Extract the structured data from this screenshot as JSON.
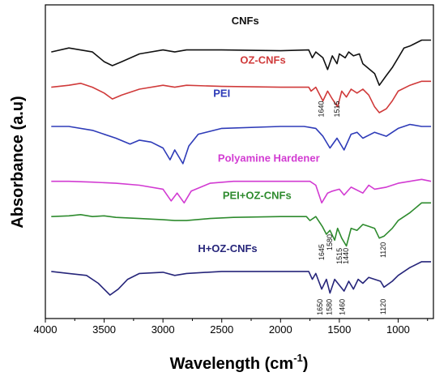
{
  "chart_data": {
    "type": "line",
    "title": "",
    "xlabel": "Wavelength (cm",
    "xlabel_sup": "-1",
    "xlabel_close": ")",
    "ylabel": "Absorbance (a.u)",
    "xlim": [
      4000,
      700
    ],
    "x_reversed": true,
    "x_ticks": [
      {
        "value": 4000,
        "label": "4000"
      },
      {
        "value": 3500,
        "label": "3500"
      },
      {
        "value": 3000,
        "label": "3000"
      },
      {
        "value": 2500,
        "label": "2500"
      },
      {
        "value": 2000,
        "label": "2000"
      },
      {
        "value": 1500,
        "label": "1500"
      },
      {
        "value": 1000,
        "label": "1000"
      }
    ],
    "grid": false,
    "series": [
      {
        "name": "CNFs",
        "color": "#111111",
        "offset": 5.6,
        "points": [
          [
            3950,
            0
          ],
          [
            3800,
            0.1
          ],
          [
            3600,
            0.0
          ],
          [
            3500,
            -0.25
          ],
          [
            3430,
            -0.35
          ],
          [
            3350,
            -0.25
          ],
          [
            3200,
            -0.05
          ],
          [
            3000,
            0.05
          ],
          [
            2900,
            0
          ],
          [
            2800,
            0.05
          ],
          [
            2500,
            0.05
          ],
          [
            2000,
            0.03
          ],
          [
            1760,
            0.05
          ],
          [
            1730,
            -0.15
          ],
          [
            1700,
            0.0
          ],
          [
            1640,
            -0.15
          ],
          [
            1600,
            -0.45
          ],
          [
            1560,
            -0.1
          ],
          [
            1520,
            -0.3
          ],
          [
            1500,
            -0.05
          ],
          [
            1450,
            -0.15
          ],
          [
            1420,
            0
          ],
          [
            1380,
            -0.1
          ],
          [
            1330,
            -0.05
          ],
          [
            1300,
            -0.3
          ],
          [
            1200,
            -0.55
          ],
          [
            1160,
            -0.85
          ],
          [
            1100,
            -0.6
          ],
          [
            1050,
            -0.4
          ],
          [
            1000,
            -0.15
          ],
          [
            950,
            0.1
          ],
          [
            900,
            0.15
          ],
          [
            800,
            0.3
          ],
          [
            720,
            0.3
          ]
        ]
      },
      {
        "name": "OZ-CNFs",
        "color": "#d03a3a",
        "offset": 4.7,
        "points": [
          [
            3950,
            0
          ],
          [
            3800,
            0.05
          ],
          [
            3700,
            0.1
          ],
          [
            3600,
            0.0
          ],
          [
            3500,
            -0.15
          ],
          [
            3430,
            -0.3
          ],
          [
            3350,
            -0.2
          ],
          [
            3200,
            -0.05
          ],
          [
            3000,
            0.05
          ],
          [
            2900,
            0.0
          ],
          [
            2800,
            0.05
          ],
          [
            2500,
            0.02
          ],
          [
            2000,
            0
          ],
          [
            1760,
            0
          ],
          [
            1740,
            -0.1
          ],
          [
            1700,
            0
          ],
          [
            1640,
            -0.35
          ],
          [
            1600,
            -0.1
          ],
          [
            1560,
            -0.3
          ],
          [
            1515,
            -0.5
          ],
          [
            1480,
            -0.1
          ],
          [
            1440,
            -0.25
          ],
          [
            1400,
            -0.05
          ],
          [
            1350,
            -0.15
          ],
          [
            1300,
            -0.05
          ],
          [
            1250,
            -0.2
          ],
          [
            1200,
            -0.5
          ],
          [
            1160,
            -0.65
          ],
          [
            1100,
            -0.55
          ],
          [
            1050,
            -0.35
          ],
          [
            1000,
            -0.1
          ],
          [
            900,
            0.05
          ],
          [
            800,
            0.15
          ],
          [
            720,
            0.15
          ]
        ]
      },
      {
        "name": "PEI",
        "color": "#2e3bb8",
        "offset": 3.7,
        "points": [
          [
            3950,
            0
          ],
          [
            3800,
            0
          ],
          [
            3600,
            -0.1
          ],
          [
            3400,
            -0.3
          ],
          [
            3280,
            -0.45
          ],
          [
            3200,
            -0.35
          ],
          [
            3100,
            -0.4
          ],
          [
            3000,
            -0.55
          ],
          [
            2940,
            -0.85
          ],
          [
            2900,
            -0.6
          ],
          [
            2830,
            -0.95
          ],
          [
            2780,
            -0.5
          ],
          [
            2700,
            -0.2
          ],
          [
            2500,
            -0.05
          ],
          [
            2000,
            0
          ],
          [
            1800,
            0
          ],
          [
            1700,
            -0.05
          ],
          [
            1640,
            -0.25
          ],
          [
            1580,
            -0.55
          ],
          [
            1520,
            -0.3
          ],
          [
            1460,
            -0.6
          ],
          [
            1400,
            -0.2
          ],
          [
            1350,
            -0.15
          ],
          [
            1300,
            -0.3
          ],
          [
            1200,
            -0.15
          ],
          [
            1100,
            -0.25
          ],
          [
            1000,
            -0.05
          ],
          [
            900,
            0.05
          ],
          [
            800,
            0.0
          ],
          [
            720,
            0
          ]
        ]
      },
      {
        "name": "Polyamine Hardener",
        "color": "#d23bd2",
        "offset": 2.3,
        "points": [
          [
            3950,
            0
          ],
          [
            3800,
            0
          ],
          [
            3600,
            -0.02
          ],
          [
            3400,
            -0.05
          ],
          [
            3200,
            -0.1
          ],
          [
            3000,
            -0.2
          ],
          [
            2930,
            -0.5
          ],
          [
            2880,
            -0.3
          ],
          [
            2820,
            -0.55
          ],
          [
            2760,
            -0.25
          ],
          [
            2600,
            -0.05
          ],
          [
            2400,
            0
          ],
          [
            2000,
            0
          ],
          [
            1750,
            0
          ],
          [
            1700,
            -0.1
          ],
          [
            1650,
            -0.55
          ],
          [
            1600,
            -0.3
          ],
          [
            1560,
            -0.25
          ],
          [
            1500,
            -0.2
          ],
          [
            1460,
            -0.35
          ],
          [
            1400,
            -0.15
          ],
          [
            1300,
            -0.3
          ],
          [
            1250,
            -0.1
          ],
          [
            1200,
            -0.2
          ],
          [
            1100,
            -0.15
          ],
          [
            1050,
            -0.1
          ],
          [
            1000,
            -0.05
          ],
          [
            900,
            0.0
          ],
          [
            800,
            0.05
          ],
          [
            720,
            0.0
          ]
        ]
      },
      {
        "name": "PEI+OZ-CNFs",
        "color": "#2e8b2e",
        "offset": 1.4,
        "points": [
          [
            3950,
            0
          ],
          [
            3800,
            0.02
          ],
          [
            3700,
            0.05
          ],
          [
            3600,
            0.0
          ],
          [
            3500,
            0.02
          ],
          [
            3400,
            -0.02
          ],
          [
            3200,
            -0.05
          ],
          [
            3000,
            -0.08
          ],
          [
            2900,
            -0.1
          ],
          [
            2800,
            -0.1
          ],
          [
            2600,
            -0.05
          ],
          [
            2400,
            -0.02
          ],
          [
            2000,
            0
          ],
          [
            1780,
            0
          ],
          [
            1750,
            -0.1
          ],
          [
            1700,
            0
          ],
          [
            1645,
            -0.25
          ],
          [
            1610,
            -0.45
          ],
          [
            1580,
            -0.35
          ],
          [
            1540,
            -0.6
          ],
          [
            1515,
            -0.3
          ],
          [
            1480,
            -0.55
          ],
          [
            1440,
            -0.75
          ],
          [
            1400,
            -0.3
          ],
          [
            1350,
            -0.35
          ],
          [
            1300,
            -0.2
          ],
          [
            1250,
            -0.25
          ],
          [
            1200,
            -0.3
          ],
          [
            1160,
            -0.55
          ],
          [
            1120,
            -0.5
          ],
          [
            1050,
            -0.3
          ],
          [
            1000,
            -0.1
          ],
          [
            900,
            0.1
          ],
          [
            800,
            0.35
          ],
          [
            720,
            0.35
          ]
        ]
      },
      {
        "name": "H+OZ-CNFs",
        "color": "#26257a",
        "offset": 0.0,
        "points": [
          [
            3950,
            0
          ],
          [
            3800,
            -0.05
          ],
          [
            3650,
            -0.1
          ],
          [
            3550,
            -0.3
          ],
          [
            3450,
            -0.6
          ],
          [
            3380,
            -0.45
          ],
          [
            3300,
            -0.2
          ],
          [
            3200,
            -0.05
          ],
          [
            3000,
            -0.02
          ],
          [
            2900,
            -0.1
          ],
          [
            2800,
            -0.05
          ],
          [
            2500,
            0
          ],
          [
            2000,
            0
          ],
          [
            1760,
            0
          ],
          [
            1730,
            -0.2
          ],
          [
            1700,
            -0.05
          ],
          [
            1650,
            -0.45
          ],
          [
            1610,
            -0.2
          ],
          [
            1580,
            -0.55
          ],
          [
            1540,
            -0.2
          ],
          [
            1500,
            -0.35
          ],
          [
            1460,
            -0.5
          ],
          [
            1420,
            -0.25
          ],
          [
            1380,
            -0.45
          ],
          [
            1340,
            -0.2
          ],
          [
            1300,
            -0.3
          ],
          [
            1250,
            -0.15
          ],
          [
            1200,
            -0.2
          ],
          [
            1150,
            -0.25
          ],
          [
            1120,
            -0.4
          ],
          [
            1050,
            -0.25
          ],
          [
            1000,
            -0.1
          ],
          [
            900,
            0.1
          ],
          [
            800,
            0.25
          ],
          [
            720,
            0.25
          ]
        ]
      }
    ],
    "labels": [
      {
        "text": "CNFs",
        "x": 2300,
        "offset": 6.3,
        "color": "#111111"
      },
      {
        "text": "OZ-CNFs",
        "x": 2150,
        "offset": 5.3,
        "color": "#d03a3a"
      },
      {
        "text": "PEI",
        "x": 2500,
        "offset": 4.45,
        "color": "#2e3bb8"
      },
      {
        "text": "Polyamine Hardener",
        "x": 2100,
        "offset": 2.8,
        "color": "#d23bd2"
      },
      {
        "text": "PEI+OZ-CNFs",
        "x": 2200,
        "offset": 1.85,
        "color": "#2e8b2e"
      },
      {
        "text": "H+OZ-CNFs",
        "x": 2450,
        "offset": 0.5,
        "color": "#26257a"
      }
    ],
    "annotations": [
      {
        "text": "1640",
        "x": 1635,
        "offset": 4.35
      },
      {
        "text": "1515",
        "x": 1500,
        "offset": 4.35
      },
      {
        "text": "1645",
        "x": 1630,
        "offset": 0.7
      },
      {
        "text": "1580",
        "x": 1560,
        "offset": 0.95
      },
      {
        "text": "1515",
        "x": 1480,
        "offset": 0.6
      },
      {
        "text": "1440",
        "x": 1425,
        "offset": 0.6
      },
      {
        "text": "1120",
        "x": 1105,
        "offset": 0.75
      },
      {
        "text": "1650",
        "x": 1645,
        "offset": -0.7
      },
      {
        "text": "1580",
        "x": 1565,
        "offset": -0.7
      },
      {
        "text": "1460",
        "x": 1455,
        "offset": -0.7
      },
      {
        "text": "1120",
        "x": 1105,
        "offset": -0.7
      }
    ],
    "y_range": [
      -1.2,
      6.8
    ]
  }
}
